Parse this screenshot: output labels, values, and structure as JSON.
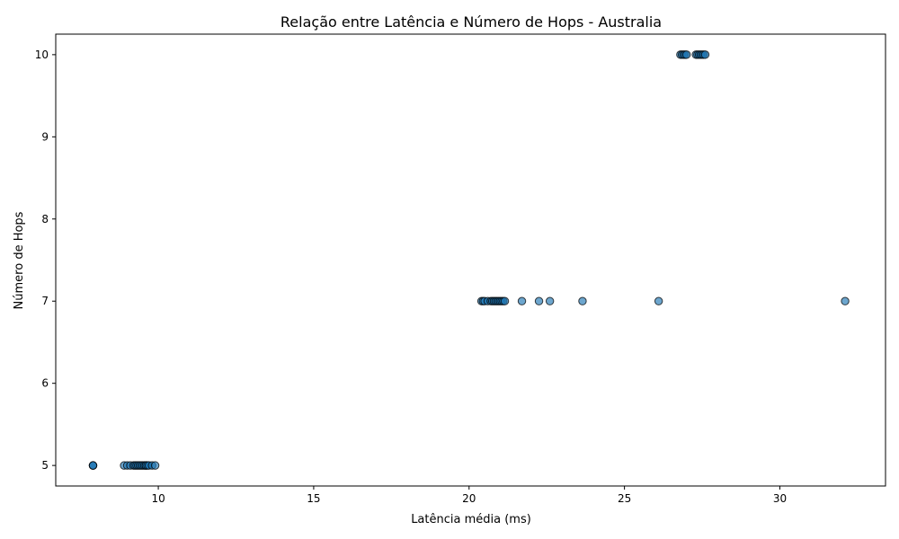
{
  "chart_data": {
    "type": "scatter",
    "title": "Relação entre Latência e Número de Hops - Australia",
    "xlabel": "Latência média (ms)",
    "ylabel": "Número de Hops",
    "xlim": [
      6.7,
      33.4
    ],
    "ylim": [
      4.75,
      10.25
    ],
    "xticks": [
      10,
      15,
      20,
      25,
      30
    ],
    "yticks": [
      5,
      6,
      7,
      8,
      9,
      10
    ],
    "grid": false,
    "legend": "none",
    "marker_color": "#1f77b4",
    "marker_edge_color": "#000000",
    "series": [
      {
        "x": [
          7.9,
          7.9,
          7.9,
          8.9,
          9.0,
          9.1,
          9.2,
          9.25,
          9.3,
          9.35,
          9.4,
          9.45,
          9.5,
          9.55,
          9.6,
          9.6,
          9.65,
          9.7,
          9.8,
          9.9,
          20.4,
          20.45,
          20.5,
          20.6,
          20.7,
          20.75,
          20.8,
          20.85,
          20.9,
          20.95,
          21.0,
          21.05,
          21.1,
          21.15,
          21.7,
          22.25,
          22.6,
          23.65,
          26.1,
          32.1,
          26.8,
          26.85,
          26.9,
          26.95,
          27.0,
          27.3,
          27.35,
          27.4,
          27.45,
          27.5,
          27.55,
          27.6
        ],
        "y": [
          5,
          5,
          5,
          5,
          5,
          5,
          5,
          5,
          5,
          5,
          5,
          5,
          5,
          5,
          5,
          5,
          5,
          5,
          5,
          5,
          7,
          7,
          7,
          7,
          7,
          7,
          7,
          7,
          7,
          7,
          7,
          7,
          7,
          7,
          7,
          7,
          7,
          7,
          7,
          7,
          10,
          10,
          10,
          10,
          10,
          10,
          10,
          10,
          10,
          10,
          10,
          10
        ]
      }
    ]
  }
}
